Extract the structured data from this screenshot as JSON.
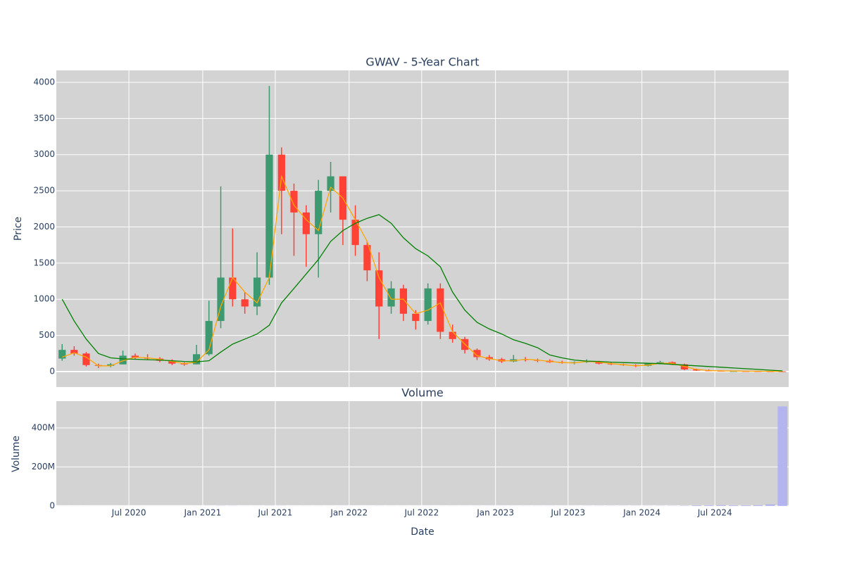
{
  "chart_data": [
    {
      "type": "candlestick",
      "title": "GWAV - 5-Year Chart",
      "y_label": "Price",
      "x": [
        "2020-01",
        "2020-02",
        "2020-03",
        "2020-04",
        "2020-05",
        "2020-06",
        "2020-07",
        "2020-08",
        "2020-09",
        "2020-10",
        "2020-11",
        "2020-12",
        "2021-01",
        "2021-02",
        "2021-03",
        "2021-04",
        "2021-05",
        "2021-06",
        "2021-07",
        "2021-08",
        "2021-09",
        "2021-10",
        "2021-11",
        "2021-12",
        "2022-01",
        "2022-02",
        "2022-03",
        "2022-04",
        "2022-05",
        "2022-06",
        "2022-07",
        "2022-08",
        "2022-09",
        "2022-10",
        "2022-11",
        "2022-12",
        "2023-01",
        "2023-02",
        "2023-03",
        "2023-04",
        "2023-05",
        "2023-06",
        "2023-07",
        "2023-08",
        "2023-09",
        "2023-10",
        "2023-11",
        "2023-12",
        "2024-01",
        "2024-02",
        "2024-03",
        "2024-04",
        "2024-05",
        "2024-06",
        "2024-07",
        "2024-08",
        "2024-09",
        "2024-10",
        "2024-11",
        "2024-12"
      ],
      "open": [
        180,
        300,
        250,
        90,
        80,
        100,
        220,
        190,
        180,
        150,
        110,
        100,
        240,
        700,
        1300,
        1000,
        900,
        1300,
        3000,
        2500,
        2200,
        1900,
        2500,
        2700,
        2100,
        1750,
        1400,
        900,
        1150,
        800,
        700,
        1150,
        550,
        450,
        300,
        200,
        170,
        140,
        170,
        160,
        150,
        130,
        120,
        130,
        140,
        110,
        100,
        90,
        80,
        110,
        130,
        100,
        30,
        15,
        10,
        5,
        6,
        5,
        4,
        3
      ],
      "high": [
        380,
        350,
        270,
        110,
        120,
        290,
        250,
        240,
        200,
        170,
        130,
        370,
        980,
        2560,
        1980,
        1100,
        1650,
        3950,
        3100,
        2600,
        2300,
        2650,
        2900,
        2700,
        2300,
        1800,
        1650,
        1250,
        1200,
        850,
        1220,
        1220,
        650,
        480,
        320,
        230,
        190,
        230,
        200,
        180,
        170,
        150,
        140,
        170,
        150,
        130,
        110,
        100,
        120,
        150,
        140,
        110,
        40,
        30,
        15,
        10,
        9,
        8,
        6,
        5
      ],
      "low": [
        150,
        220,
        70,
        50,
        60,
        100,
        170,
        160,
        130,
        90,
        80,
        100,
        220,
        600,
        900,
        800,
        780,
        1200,
        1900,
        1600,
        1450,
        1300,
        2200,
        1750,
        1600,
        1250,
        450,
        800,
        700,
        580,
        650,
        450,
        400,
        250,
        160,
        150,
        120,
        130,
        140,
        130,
        120,
        110,
        100,
        120,
        100,
        90,
        80,
        60,
        70,
        100,
        90,
        20,
        10,
        5,
        2,
        2,
        2,
        1,
        1,
        1
      ],
      "close": [
        300,
        250,
        90,
        80,
        100,
        220,
        190,
        180,
        150,
        110,
        100,
        240,
        700,
        1300,
        1000,
        900,
        1300,
        3000,
        2500,
        2200,
        1900,
        2500,
        2700,
        2100,
        1750,
        1400,
        900,
        1150,
        800,
        700,
        1150,
        550,
        450,
        300,
        200,
        170,
        140,
        170,
        160,
        150,
        130,
        120,
        130,
        140,
        110,
        100,
        90,
        80,
        110,
        130,
        100,
        30,
        15,
        10,
        5,
        6,
        5,
        4,
        3,
        2
      ],
      "increasing_color": "#3d9970",
      "decreasing_color": "#ff4136",
      "lines": [
        {
          "color": "#ffa500",
          "values": [
            200,
            260,
            200,
            80,
            80,
            150,
            200,
            190,
            170,
            140,
            110,
            130,
            300,
            900,
            1300,
            1100,
            950,
            1300,
            2700,
            2300,
            2100,
            1950,
            2550,
            2400,
            2100,
            1800,
            1300,
            1000,
            1000,
            800,
            850,
            950,
            550,
            380,
            220,
            180,
            150,
            150,
            170,
            160,
            140,
            125,
            120,
            140,
            130,
            110,
            95,
            80,
            90,
            115,
            115,
            70,
            30,
            15,
            10,
            8,
            6,
            5,
            4,
            3
          ]
        },
        {
          "color": "#008000",
          "values": [
            1000,
            700,
            450,
            250,
            190,
            175,
            170,
            165,
            160,
            150,
            140,
            135,
            150,
            270,
            380,
            450,
            520,
            640,
            950,
            1150,
            1350,
            1550,
            1800,
            1950,
            2050,
            2120,
            2170,
            2050,
            1850,
            1700,
            1600,
            1450,
            1100,
            850,
            680,
            590,
            520,
            440,
            390,
            330,
            230,
            190,
            160,
            145,
            140,
            130,
            125,
            120,
            115,
            110,
            100,
            90,
            80,
            70,
            60,
            50,
            40,
            30,
            20,
            10
          ]
        }
      ],
      "ylim": [
        -214,
        4165
      ],
      "yticks": [
        0,
        500,
        1000,
        1500,
        2000,
        2500,
        3000,
        3500,
        4000
      ],
      "grid": true
    },
    {
      "type": "bar",
      "title": "Volume",
      "x_label": "Date",
      "y_label": "Volume",
      "x": [
        "2020-01",
        "2020-02",
        "2020-03",
        "2020-04",
        "2020-05",
        "2020-06",
        "2020-07",
        "2020-08",
        "2020-09",
        "2020-10",
        "2020-11",
        "2020-12",
        "2021-01",
        "2021-02",
        "2021-03",
        "2021-04",
        "2021-05",
        "2021-06",
        "2021-07",
        "2021-08",
        "2021-09",
        "2021-10",
        "2021-11",
        "2021-12",
        "2022-01",
        "2022-02",
        "2022-03",
        "2022-04",
        "2022-05",
        "2022-06",
        "2022-07",
        "2022-08",
        "2022-09",
        "2022-10",
        "2022-11",
        "2022-12",
        "2023-01",
        "2023-02",
        "2023-03",
        "2023-04",
        "2023-05",
        "2023-06",
        "2023-07",
        "2023-08",
        "2023-09",
        "2023-10",
        "2023-11",
        "2023-12",
        "2024-01",
        "2024-02",
        "2024-03",
        "2024-04",
        "2024-05",
        "2024-06",
        "2024-07",
        "2024-08",
        "2024-09",
        "2024-10",
        "2024-11",
        "2024-12"
      ],
      "values": [
        200000,
        150000,
        150000,
        100000,
        100000,
        200000,
        150000,
        100000,
        100000,
        100000,
        100000,
        200000,
        400000,
        800000,
        500000,
        300000,
        300000,
        600000,
        500000,
        300000,
        300000,
        300000,
        300000,
        300000,
        300000,
        300000,
        400000,
        300000,
        300000,
        300000,
        300000,
        300000,
        300000,
        300000,
        400000,
        400000,
        400000,
        400000,
        400000,
        400000,
        400000,
        400000,
        400000,
        500000,
        500000,
        500000,
        500000,
        600000,
        600000,
        800000,
        800000,
        1500000,
        3000000,
        3000000,
        4000000,
        3000000,
        3000000,
        4000000,
        8000000,
        510000000
      ],
      "color": "#b4b4f0",
      "xlim": [
        "2020-01-02",
        "2025-01-01"
      ],
      "xticks": [
        {
          "value": "2020-07-01",
          "label": "Jul 2020"
        },
        {
          "value": "2021-01-01",
          "label": "Jan 2021"
        },
        {
          "value": "2021-07-01",
          "label": "Jul 2021"
        },
        {
          "value": "2022-01-01",
          "label": "Jan 2022"
        },
        {
          "value": "2022-07-01",
          "label": "Jul 2022"
        },
        {
          "value": "2023-01-01",
          "label": "Jan 2023"
        },
        {
          "value": "2023-07-01",
          "label": "Jul 2023"
        },
        {
          "value": "2024-01-01",
          "label": "Jan 2024"
        },
        {
          "value": "2024-07-01",
          "label": "Jul 2024"
        }
      ],
      "ylim": [
        -4000000,
        537000000
      ],
      "yticks": [
        0,
        {
          "value": 200000000,
          "label": "200M"
        },
        {
          "value": 400000000,
          "label": "400M"
        }
      ],
      "grid": true
    }
  ]
}
